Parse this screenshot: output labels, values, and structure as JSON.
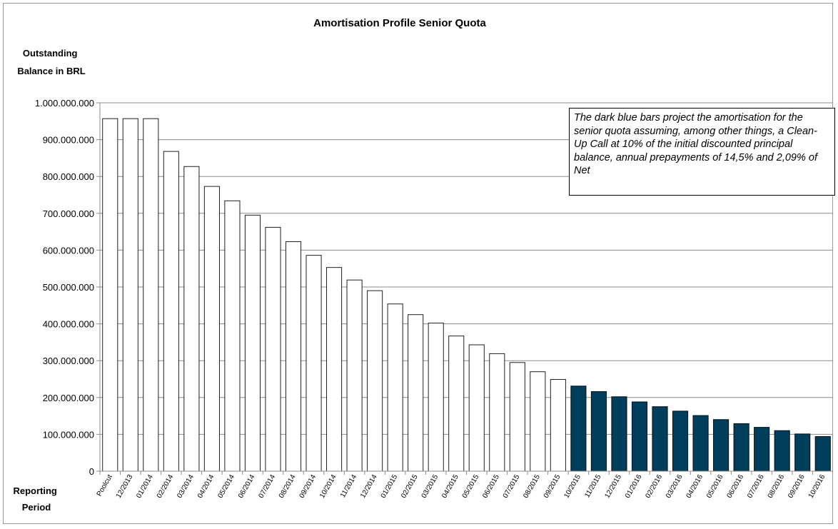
{
  "chart_data": {
    "type": "bar",
    "title": "Amortisation Profile Senior Quota",
    "ylabel_lines": [
      "Outstanding",
      "Balance in BRL"
    ],
    "xlabel_lines": [
      "Reporting",
      "Period"
    ],
    "ylim": [
      0,
      1000000000
    ],
    "ytick_step": 100000000,
    "ytick_labels": [
      "0",
      "100.000.000",
      "200.000.000",
      "300.000.000",
      "400.000.000",
      "500.000.000",
      "600.000.000",
      "700.000.000",
      "800.000.000",
      "900.000.000",
      "1.000.000.000"
    ],
    "grid": true,
    "categories": [
      "Poolcut",
      "12/2013",
      "01/2014",
      "02/2014",
      "03/2014",
      "04/2014",
      "05/2014",
      "06/2014",
      "07/2014",
      "08/2014",
      "09/2014",
      "10/2014",
      "11/2014",
      "12/2014",
      "01/2015",
      "02/2015",
      "03/2015",
      "04/2015",
      "05/2015",
      "06/2015",
      "07/2015",
      "08/2015",
      "09/2015",
      "10/2015",
      "11/2015",
      "12/2015",
      "01/2016",
      "02/2016",
      "03/2016",
      "04/2016",
      "05/2016",
      "06/2016",
      "07/2016",
      "08/2016",
      "09/2016",
      "10/2016"
    ],
    "values": [
      957000000,
      957000000,
      957000000,
      868000000,
      827000000,
      773000000,
      734000000,
      695000000,
      662000000,
      623000000,
      586000000,
      553000000,
      519000000,
      490000000,
      454000000,
      425000000,
      402000000,
      367000000,
      343000000,
      319000000,
      295000000,
      270000000,
      249000000,
      231000000,
      216000000,
      202000000,
      188000000,
      175000000,
      163000000,
      151000000,
      140000000,
      129000000,
      119000000,
      110000000,
      101000000,
      94000000
    ],
    "series_styles": [
      {
        "from": "Poolcut",
        "to": "09/2015",
        "fill": "#ffffff",
        "stroke": "#1f1f1f"
      },
      {
        "from": "10/2015",
        "to": "10/2016",
        "fill": "#003f5c",
        "stroke": "#0b0b0b"
      }
    ],
    "colors": {
      "grid": "#8c8c8c",
      "axis": "#8c8c8c",
      "frame": "#9a9a9a"
    }
  },
  "annotation": {
    "text": "The dark blue bars project the amortisation for the senior quota assuming, among other things, a Clean-Up Call at 10% of the initial discounted principal balance, annual prepayments of 14,5% and 2,09% of Net"
  }
}
